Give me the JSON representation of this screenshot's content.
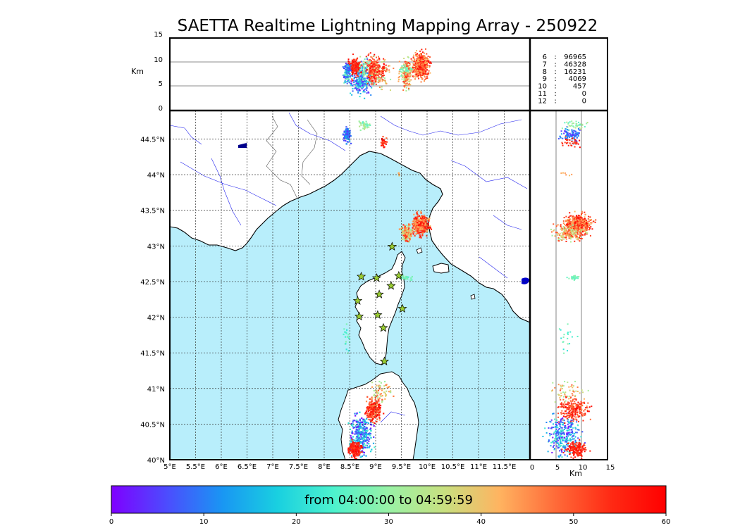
{
  "title": "SAETTA Realtime Lightning Mapping Array - 250922",
  "map": {
    "lon_ticks": [
      "5°E",
      "5.5°E",
      "6°E",
      "6.5°E",
      "7°E",
      "7.5°E",
      "8°E",
      "8.5°E",
      "9°E",
      "9.5°E",
      "10°E",
      "10.5°E",
      "11°E",
      "11.5°E"
    ],
    "lat_ticks": [
      "40°N",
      "40.5°N",
      "41°N",
      "41.5°N",
      "42°N",
      "42.5°N",
      "43°N",
      "43.5°N",
      "44°N",
      "44.5°N"
    ],
    "lon_range": [
      5.0,
      12.0
    ],
    "lat_range": [
      40.0,
      44.9
    ],
    "sea_color": "#b8eefb",
    "land_color": "#ffffff",
    "river_color": "#2222ee",
    "station_marker": "yellow-green-star"
  },
  "altitude_panel": {
    "ylabel": "Km",
    "ticks": [
      "0",
      "5",
      "10",
      "15"
    ]
  },
  "side_panel": {
    "xlabel": "Km",
    "ticks": [
      "0",
      "5",
      "10",
      "15"
    ]
  },
  "stats": [
    {
      "stations": "6",
      "sep": ":",
      "count": "96965",
      "color": "#ff0000"
    },
    {
      "stations": "7",
      "sep": ":",
      "count": "46328",
      "color": "#000000"
    },
    {
      "stations": "8",
      "sep": ":",
      "count": "16231",
      "color": "#000000"
    },
    {
      "stations": "9",
      "sep": ":",
      "count": "4069",
      "color": "#000000"
    },
    {
      "stations": "10",
      "sep": ":",
      "count": "457",
      "color": "#000000"
    },
    {
      "stations": "11",
      "sep": ":",
      "count": "0",
      "color": "#000000"
    },
    {
      "stations": "12",
      "sep": ":",
      "count": "0",
      "color": "#000000"
    }
  ],
  "colorbar": {
    "label": "from 04:00:00 to 04:59:59",
    "ticks": [
      "0",
      "10",
      "20",
      "30",
      "40",
      "50",
      "60"
    ],
    "range": [
      0,
      60
    ],
    "colors": [
      "#7f00ff",
      "#4c4cfe",
      "#1996f3",
      "#19d0e0",
      "#4cf2ce",
      "#99f2a6",
      "#c8e080",
      "#ffb360",
      "#ff6b39",
      "#ff2a14",
      "#ff0000"
    ]
  },
  "stations": [
    {
      "lon": 8.72,
      "lat": 42.57
    },
    {
      "lon": 9.02,
      "lat": 42.55
    },
    {
      "lon": 9.32,
      "lat": 42.99
    },
    {
      "lon": 9.45,
      "lat": 42.58
    },
    {
      "lon": 9.3,
      "lat": 42.44
    },
    {
      "lon": 9.07,
      "lat": 42.32
    },
    {
      "lon": 8.65,
      "lat": 42.23
    },
    {
      "lon": 8.68,
      "lat": 42.01
    },
    {
      "lon": 9.04,
      "lat": 42.03
    },
    {
      "lon": 9.52,
      "lat": 42.12
    },
    {
      "lon": 9.15,
      "lat": 41.85
    },
    {
      "lon": 9.17,
      "lat": 41.38
    }
  ]
}
